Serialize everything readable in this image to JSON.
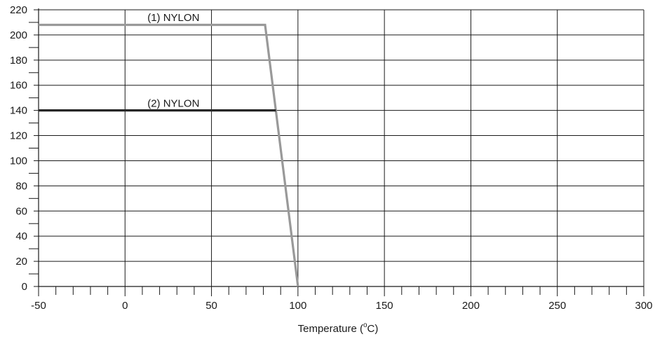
{
  "chart_data": {
    "type": "line",
    "title": "",
    "xlabel": "Temperature (°C)",
    "xlabel_main": "Temperature (",
    "xlabel_degree": "o",
    "xlabel_unit": "C)",
    "ylabel": "",
    "xlim": [
      -50,
      300
    ],
    "ylim": [
      0,
      220
    ],
    "x_ticks": [
      -50,
      0,
      50,
      100,
      150,
      200,
      250,
      300
    ],
    "y_ticks": [
      0,
      20,
      40,
      60,
      80,
      100,
      120,
      140,
      160,
      180,
      200,
      220
    ],
    "x_minor_step": 10,
    "y_minor_step": 10,
    "grid": true,
    "series": [
      {
        "name": "(1) NYLON",
        "color": "#999999",
        "points": [
          [
            -50,
            208
          ],
          [
            81,
            208
          ],
          [
            100,
            0
          ]
        ]
      },
      {
        "name": "(2) NYLON",
        "color": "#262626",
        "points": [
          [
            -50,
            140
          ],
          [
            87.3,
            140
          ]
        ]
      }
    ],
    "annotations": [
      {
        "text": "(1) NYLON",
        "x": 28,
        "y": 211
      },
      {
        "text": "(2) NYLON",
        "x": 28,
        "y": 143
      }
    ]
  }
}
